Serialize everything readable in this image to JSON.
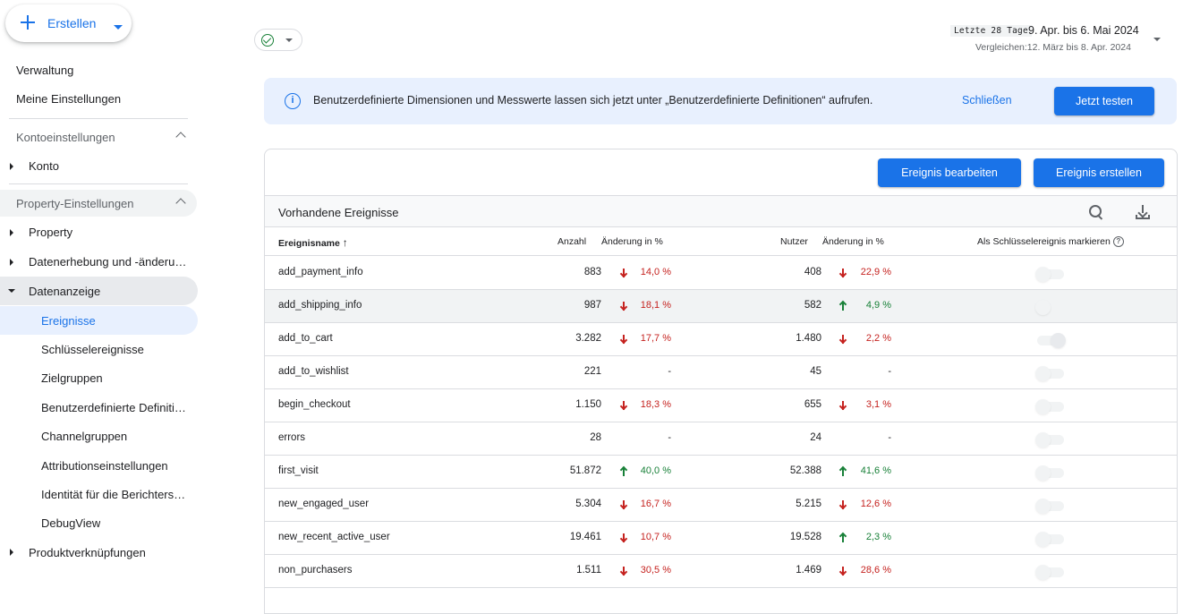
{
  "create_button": {
    "label": "Erstellen"
  },
  "sidebar": {
    "admin": "Verwaltung",
    "my_settings": "Meine Einstellungen",
    "account_settings": "Kontoeinstellungen",
    "account": "Konto",
    "property_settings": "Property-Einstellungen",
    "property": "Property",
    "data_collection": "Datenerhebung und -änderu…",
    "data_display": "Datenanzeige",
    "data_display_items": [
      "Ereignisse",
      "Schlüsselereignisse",
      "Zielgruppen",
      "Benutzerdefinierte Definiti…",
      "Channelgruppen",
      "Attributionseinstellungen",
      "Identität für die Berichters…",
      "DebugView"
    ],
    "product_links": "Produktverknüpfungen"
  },
  "date_range": {
    "badge": "Letzte 28 Tage",
    "range": "9. Apr. bis 6. Mai 2024",
    "compare": "Vergleichen:12. März bis 8. Apr. 2024"
  },
  "banner": {
    "text": "Benutzerdefinierte Dimensionen und Messwerte lassen sich jetzt unter „Benutzerdefinierte Definitionen“ aufrufen.",
    "close": "Schließen",
    "try": "Jetzt testen"
  },
  "card": {
    "edit_button": "Ereignis bearbeiten",
    "create_button": "Ereignis erstellen",
    "title": "Vorhandene Ereignisse"
  },
  "table": {
    "headers": {
      "name": "Ereignisname",
      "count": "Anzahl",
      "count_change": "Änderung in %",
      "users": "Nutzer",
      "users_change": "Änderung in %",
      "key_event": "Als Schlüsselereignis markieren"
    },
    "rows": [
      {
        "name": "add_payment_info",
        "count": "883",
        "count_dir": "down",
        "count_pct": "14,0 %",
        "users": "408",
        "users_dir": "down",
        "users_pct": "22,9 %",
        "key": false
      },
      {
        "name": "add_shipping_info",
        "count": "987",
        "count_dir": "down",
        "count_pct": "18,1 %",
        "users": "582",
        "users_dir": "up",
        "users_pct": "4,9 %",
        "key": false
      },
      {
        "name": "add_to_cart",
        "count": "3.282",
        "count_dir": "down",
        "count_pct": "17,7 %",
        "users": "1.480",
        "users_dir": "down",
        "users_pct": "2,2 %",
        "key": true
      },
      {
        "name": "add_to_wishlist",
        "count": "221",
        "count_dir": "none",
        "count_pct": "-",
        "users": "45",
        "users_dir": "none",
        "users_pct": "-",
        "key": false
      },
      {
        "name": "begin_checkout",
        "count": "1.150",
        "count_dir": "down",
        "count_pct": "18,3 %",
        "users": "655",
        "users_dir": "down",
        "users_pct": "3,1 %",
        "key": false
      },
      {
        "name": "errors",
        "count": "28",
        "count_dir": "none",
        "count_pct": "-",
        "users": "24",
        "users_dir": "none",
        "users_pct": "-",
        "key": false
      },
      {
        "name": "first_visit",
        "count": "51.872",
        "count_dir": "up",
        "count_pct": "40,0 %",
        "users": "52.388",
        "users_dir": "up",
        "users_pct": "41,6 %",
        "key": false
      },
      {
        "name": "new_engaged_user",
        "count": "5.304",
        "count_dir": "down",
        "count_pct": "16,7 %",
        "users": "5.215",
        "users_dir": "down",
        "users_pct": "12,6 %",
        "key": false
      },
      {
        "name": "new_recent_active_user",
        "count": "19.461",
        "count_dir": "down",
        "count_pct": "10,7 %",
        "users": "19.528",
        "users_dir": "up",
        "users_pct": "2,3 %",
        "key": false
      },
      {
        "name": "non_purchasers",
        "count": "1.511",
        "count_dir": "down",
        "count_pct": "30,5 %",
        "users": "1.469",
        "users_dir": "down",
        "users_pct": "28,6 %",
        "key": false
      }
    ]
  },
  "colors": {
    "accent": "#1a73e8",
    "down": "#c5221f",
    "up": "#188038"
  },
  "icons": [
    "plus-icon",
    "check-circle-icon",
    "info-icon",
    "search-icon",
    "download-icon",
    "arrow-up-icon",
    "arrow-down-icon",
    "help-icon"
  ]
}
